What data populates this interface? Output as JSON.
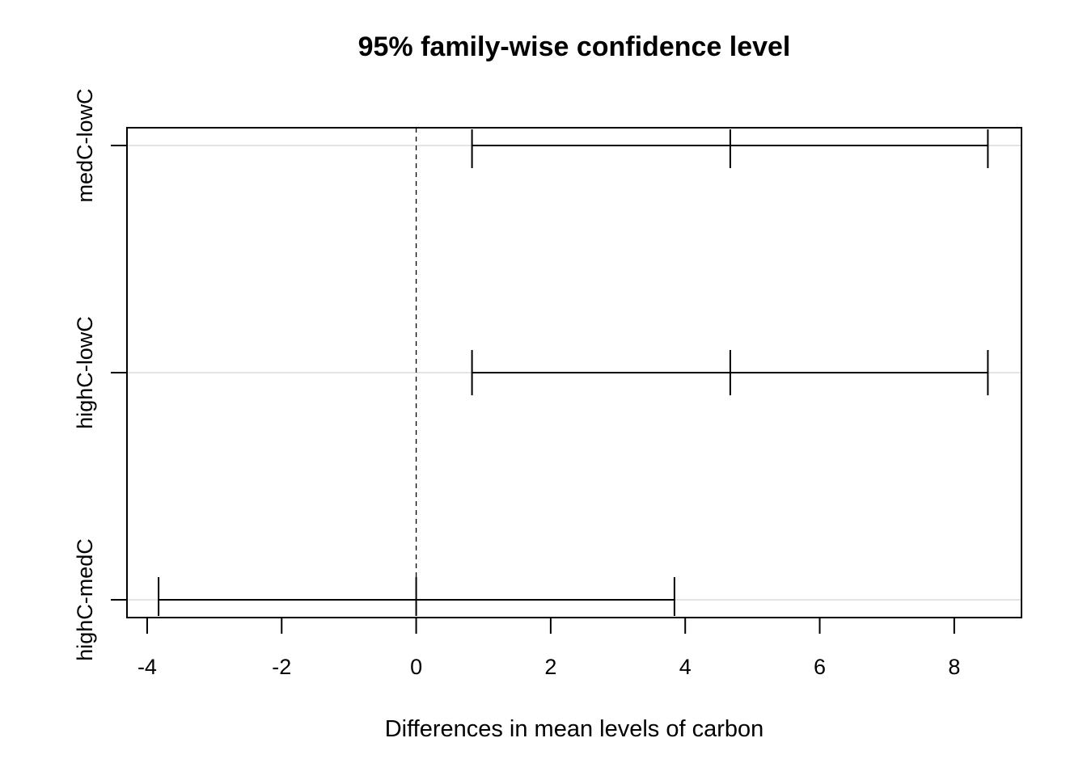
{
  "chart_data": {
    "type": "errorbar",
    "title": "95% family-wise confidence level",
    "xlabel": "Differences in mean levels of carbon",
    "ylabel": "",
    "xlim": [
      -4.3,
      9
    ],
    "xticks": [
      "-4",
      "-2",
      "0",
      "2",
      "4",
      "6",
      "8"
    ],
    "reference_line": 0,
    "grid": "horizontal",
    "comparisons": [
      {
        "label": "medC-lowC",
        "lwr": 0.83,
        "diff": 4.67,
        "upr": 8.5
      },
      {
        "label": "highC-lowC",
        "lwr": 0.83,
        "diff": 4.67,
        "upr": 8.5
      },
      {
        "label": "highC-medC",
        "lwr": -3.83,
        "diff": 0.0,
        "upr": 3.84
      }
    ]
  },
  "colors": {
    "line": "#000000",
    "grid": "#d3d3d3",
    "background": "#ffffff"
  }
}
